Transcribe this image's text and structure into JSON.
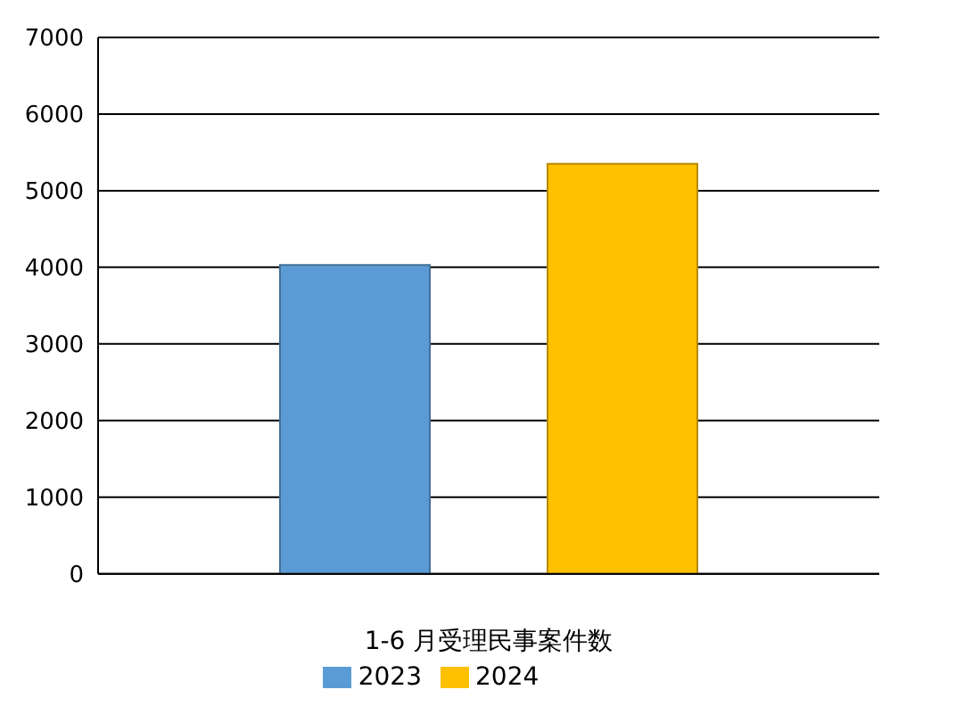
{
  "chart_data": {
    "type": "bar",
    "categories": [
      "1-6 月受理民事案件数"
    ],
    "series": [
      {
        "name": "2023",
        "color": "#5b9bd5",
        "values": [
          4030
        ]
      },
      {
        "name": "2024",
        "color": "#ffc000",
        "values": [
          5350
        ]
      }
    ],
    "ylim": [
      0,
      7000
    ],
    "yticks": [
      0,
      1000,
      2000,
      3000,
      4000,
      5000,
      6000,
      7000
    ],
    "grid": "y",
    "legend": "bottom"
  }
}
